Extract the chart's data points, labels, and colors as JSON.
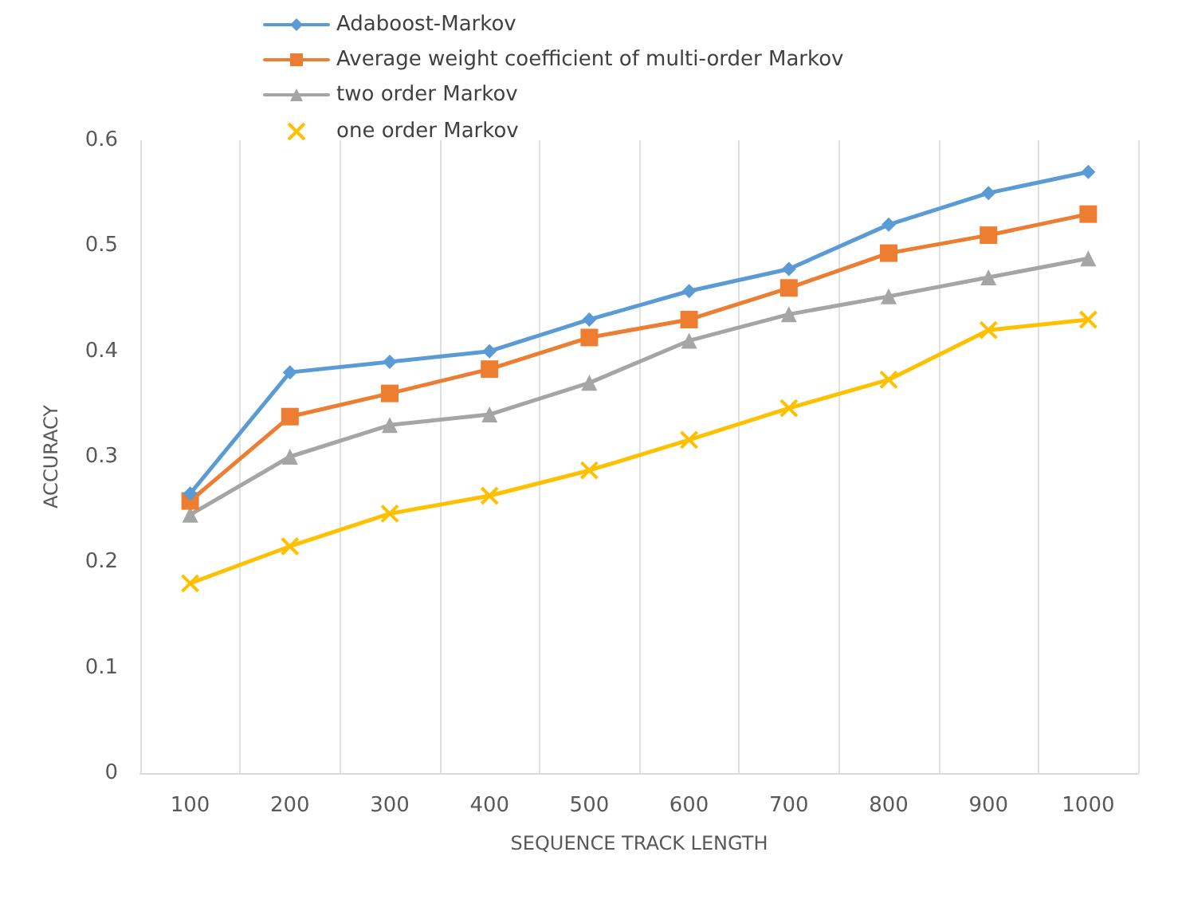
{
  "chart_data": {
    "type": "line",
    "xlabel": "SEQUENCE TRACK LENGTH",
    "ylabel": "ACCURACY",
    "categories": [
      "100",
      "200",
      "300",
      "400",
      "500",
      "600",
      "700",
      "800",
      "900",
      "1000"
    ],
    "series": [
      {
        "name": "Adaboost-Markov",
        "color": "#5b9bd5",
        "marker": "diamond",
        "values": [
          0.265,
          0.38,
          0.39,
          0.4,
          0.43,
          0.457,
          0.478,
          0.52,
          0.55,
          0.57
        ]
      },
      {
        "name": "Average weight coefficient of multi-order Markov",
        "color": "#ed7d31",
        "marker": "square",
        "values": [
          0.258,
          0.338,
          0.36,
          0.383,
          0.413,
          0.43,
          0.46,
          0.493,
          0.51,
          0.53
        ]
      },
      {
        "name": "two order Markov",
        "color": "#a5a5a5",
        "marker": "triangle",
        "values": [
          0.245,
          0.3,
          0.33,
          0.34,
          0.37,
          0.41,
          0.435,
          0.452,
          0.47,
          0.488
        ]
      },
      {
        "name": "one order Markov",
        "color": "#ffc000",
        "marker": "cross",
        "values": [
          0.18,
          0.215,
          0.246,
          0.263,
          0.287,
          0.316,
          0.346,
          0.373,
          0.42,
          0.43
        ]
      }
    ],
    "ylim": [
      0,
      0.6
    ],
    "yticks": [
      0,
      0.1,
      0.2,
      0.3,
      0.4,
      0.5,
      0.6
    ],
    "grid": "x",
    "legend": "top left"
  }
}
